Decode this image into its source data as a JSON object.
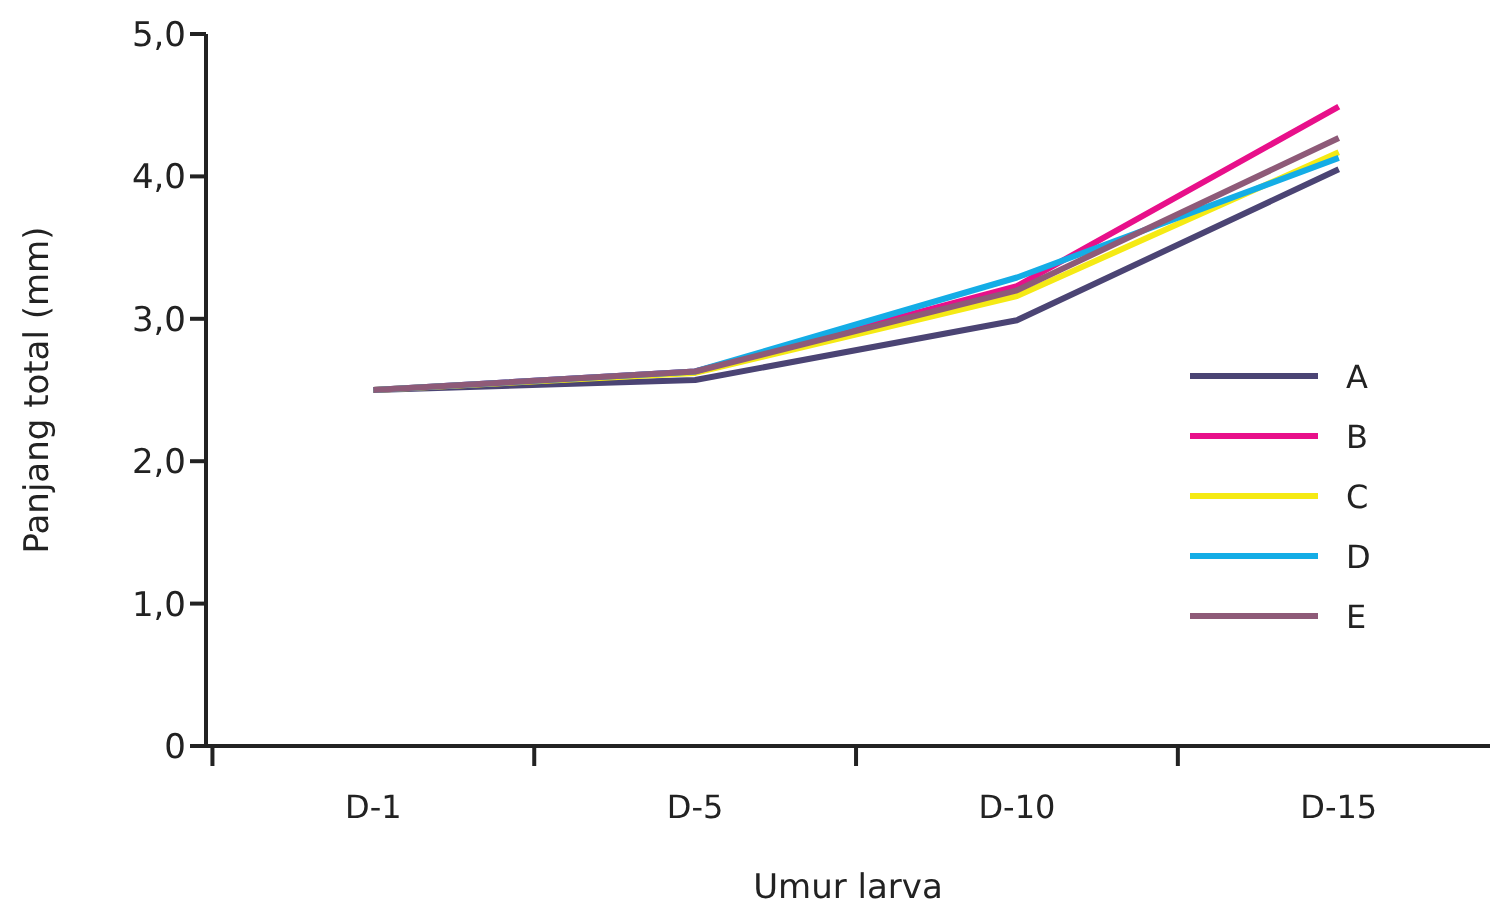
{
  "chart_data": {
    "type": "line",
    "xlabel": "Umur larva",
    "ylabel": "Panjang total (mm)",
    "categories": [
      "D-1",
      "D-5",
      "D-10",
      "D-15"
    ],
    "series": [
      {
        "name": "A",
        "color": "#4b4474",
        "values": [
          2.5,
          2.57,
          2.99,
          4.05
        ]
      },
      {
        "name": "B",
        "color": "#e8108a",
        "values": [
          2.5,
          2.63,
          3.23,
          4.49
        ]
      },
      {
        "name": "C",
        "color": "#f5ea14",
        "values": [
          2.5,
          2.62,
          3.16,
          4.17
        ]
      },
      {
        "name": "D",
        "color": "#14ade6",
        "values": [
          2.5,
          2.63,
          3.29,
          4.13
        ]
      },
      {
        "name": "E",
        "color": "#8e5a78",
        "values": [
          2.5,
          2.63,
          3.2,
          4.27
        ]
      }
    ],
    "ylim": [
      0,
      5
    ],
    "yticks": [
      0,
      {
        "value": 1,
        "label": "1,0"
      },
      {
        "value": 2,
        "label": "2,0"
      },
      {
        "value": 3,
        "label": "3,0"
      },
      {
        "value": 4,
        "label": "4,0"
      },
      {
        "value": 5,
        "label": "5,0"
      }
    ],
    "grid": false,
    "legend": "right",
    "marker": "none",
    "line_style": "solid"
  }
}
